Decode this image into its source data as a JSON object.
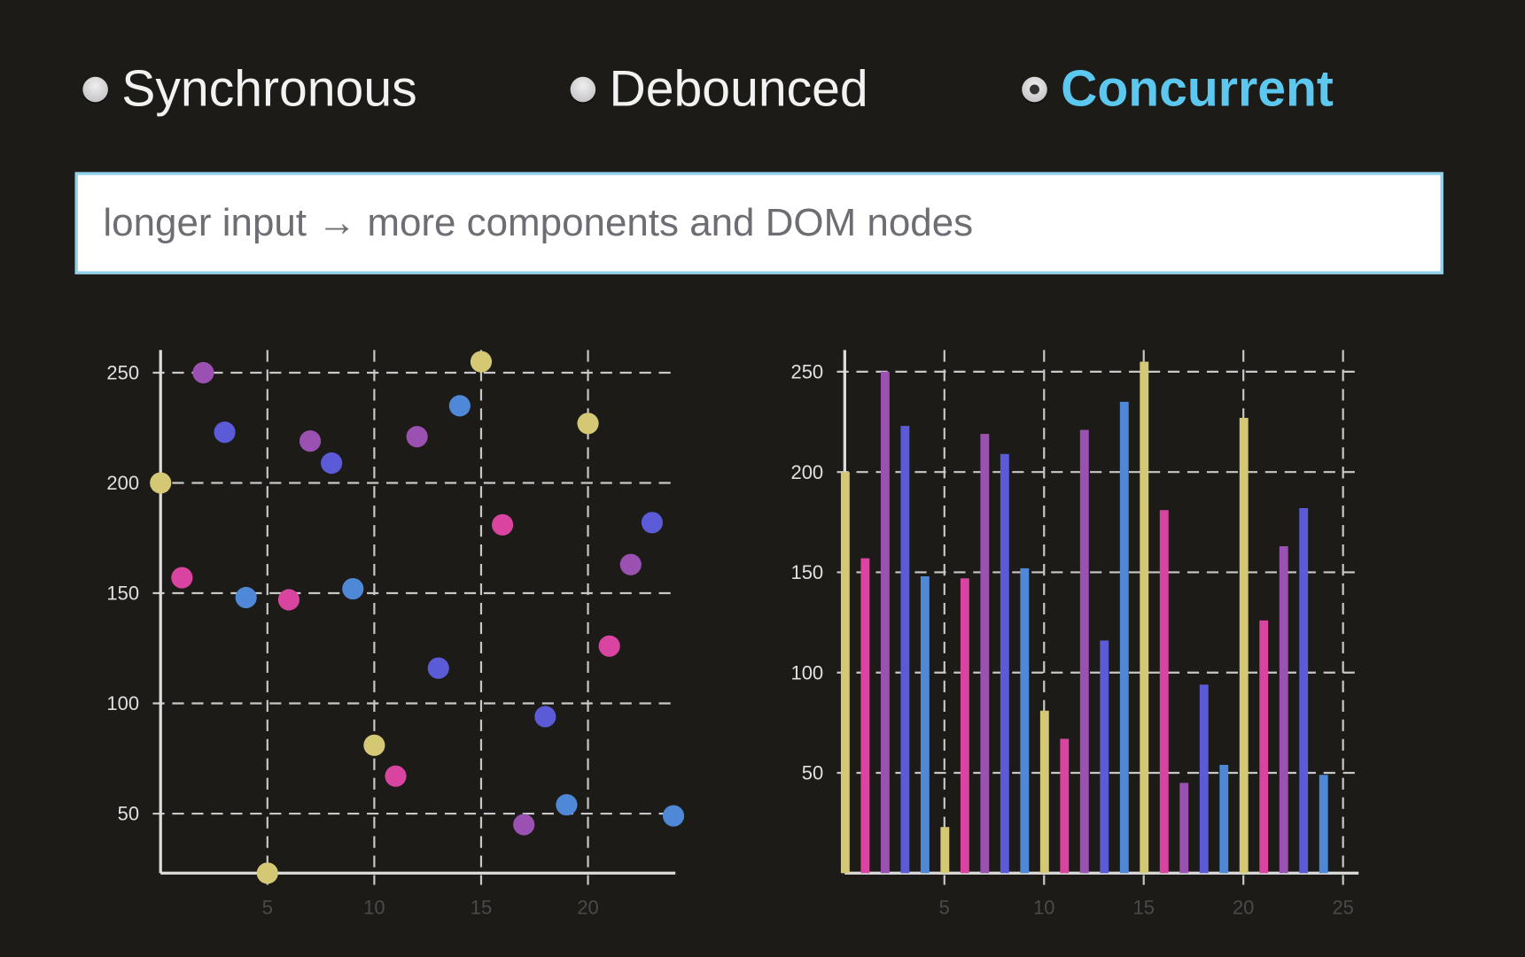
{
  "modes": [
    {
      "label": "Synchronous",
      "selected": false
    },
    {
      "label": "Debounced",
      "selected": false
    },
    {
      "label": "Concurrent",
      "selected": true
    }
  ],
  "input": {
    "value": "",
    "placeholder": "longer input → more components and DOM nodes"
  },
  "colors": {
    "palette": [
      "#d4c874",
      "#d8449f",
      "#9b51b1",
      "#5b5bd8",
      "#4f88d6"
    ],
    "accent": "#5cc8f0"
  },
  "chart_data": [
    {
      "type": "scatter",
      "x": [
        0,
        1,
        2,
        3,
        4,
        5,
        6,
        7,
        8,
        9,
        10,
        11,
        12,
        13,
        14,
        15,
        16,
        17,
        18,
        19,
        20,
        21,
        22,
        23,
        24
      ],
      "y": [
        200,
        157,
        250,
        223,
        148,
        23,
        147,
        219,
        209,
        152,
        81,
        67,
        221,
        116,
        235,
        255,
        181,
        45,
        94,
        54,
        227,
        126,
        163,
        182,
        49
      ],
      "xticks": [
        "5",
        "10",
        "15",
        "20"
      ],
      "xtick_values": [
        5,
        10,
        15,
        20
      ],
      "yticks": [
        "50",
        "100",
        "150",
        "200",
        "250"
      ],
      "ytick_values": [
        50,
        100,
        150,
        200,
        250
      ],
      "xlim": [
        0,
        24
      ],
      "ylim": [
        23,
        255
      ],
      "grid": true
    },
    {
      "type": "bar",
      "x": [
        0,
        1,
        2,
        3,
        4,
        5,
        6,
        7,
        8,
        9,
        10,
        11,
        12,
        13,
        14,
        15,
        16,
        17,
        18,
        19,
        20,
        21,
        22,
        23,
        24
      ],
      "values": [
        200,
        157,
        250,
        223,
        148,
        23,
        147,
        219,
        209,
        152,
        81,
        67,
        221,
        116,
        235,
        255,
        181,
        45,
        94,
        54,
        227,
        126,
        163,
        182,
        49
      ],
      "xticks": [
        "5",
        "10",
        "15",
        "20",
        "25"
      ],
      "xtick_values": [
        5,
        10,
        15,
        20,
        25
      ],
      "yticks": [
        "50",
        "100",
        "150",
        "200",
        "250"
      ],
      "ytick_values": [
        50,
        100,
        150,
        200,
        250
      ],
      "xlim": [
        0,
        25
      ],
      "ylim": [
        0,
        255
      ],
      "grid": true
    }
  ]
}
